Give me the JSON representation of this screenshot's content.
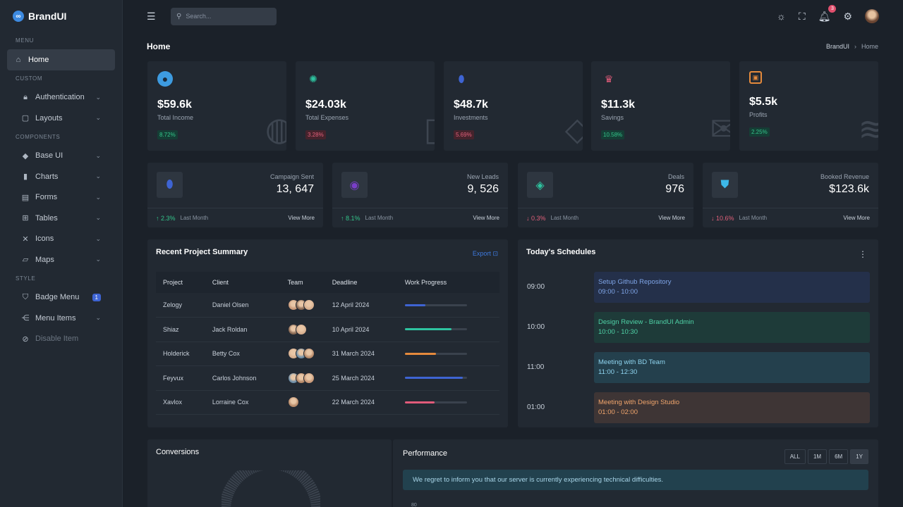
{
  "brand": {
    "name": "BrandUI",
    "logo": "∞"
  },
  "sidebar": {
    "sections": {
      "menu": "MENU",
      "custom": "CUSTOM",
      "components": "COMPONENTS",
      "style": "STYLE"
    },
    "items": [
      {
        "label": "Home",
        "icon": "home-icon"
      },
      {
        "label": "Authentication",
        "icon": "lock-icon"
      },
      {
        "label": "Layouts",
        "icon": "layout-icon"
      },
      {
        "label": "Base UI",
        "icon": "droplet-icon"
      },
      {
        "label": "Charts",
        "icon": "bar-chart-icon"
      },
      {
        "label": "Forms",
        "icon": "clipboard-icon"
      },
      {
        "label": "Tables",
        "icon": "table-icon"
      },
      {
        "label": "Icons",
        "icon": "tools-icon"
      },
      {
        "label": "Maps",
        "icon": "map-icon"
      },
      {
        "label": "Badge Menu",
        "icon": "shield-icon",
        "badge": "1"
      },
      {
        "label": "Menu Items",
        "icon": "share-icon"
      },
      {
        "label": "Disable Item",
        "icon": "disabled-icon"
      }
    ]
  },
  "topbar": {
    "search_placeholder": "Search...",
    "notification_count": "3"
  },
  "page": {
    "title": "Home",
    "breadcrumb": [
      "BrandUI",
      "Home"
    ]
  },
  "stats": [
    {
      "value": "$59.6k",
      "label": "Total Income",
      "pct": "8.72%",
      "trend": "up",
      "color": "#3d9be0",
      "icon": "globe-icon"
    },
    {
      "value": "$24.03k",
      "label": "Total Expenses",
      "pct": "3.28%",
      "trend": "down",
      "color": "#2ec4a0",
      "icon": "spinner-icon"
    },
    {
      "value": "$48.7k",
      "label": "Investments",
      "pct": "5.69%",
      "trend": "down",
      "color": "#3e64d3",
      "icon": "drop-icon"
    },
    {
      "value": "$11.3k",
      "label": "Savings",
      "pct": "10.58%",
      "trend": "up",
      "color": "#e15b7a",
      "icon": "crown-icon"
    },
    {
      "value": "$5.5k",
      "label": "Profits",
      "pct": "2.25%",
      "trend": "up",
      "color": "#e58a3c",
      "icon": "chip-icon"
    }
  ],
  "kpis": [
    {
      "label": "Campaign Sent",
      "value": "13, 647",
      "change": "↑ 2.3%",
      "trend": "up",
      "last": "Last Month",
      "more": "View More",
      "color": "#3e64d3"
    },
    {
      "label": "New Leads",
      "value": "9, 526",
      "change": "↑ 8.1%",
      "trend": "up",
      "last": "Last Month",
      "more": "View More",
      "color": "#7a3ec9"
    },
    {
      "label": "Deals",
      "value": "976",
      "change": "↓ 0.3%",
      "trend": "down",
      "last": "Last Month",
      "more": "View More",
      "color": "#2ec4a0"
    },
    {
      "label": "Booked Revenue",
      "value": "$123.6k",
      "change": "↓ 10.6%",
      "trend": "down",
      "last": "Last Month",
      "more": "View More",
      "color": "#3db8e8"
    }
  ],
  "projects": {
    "title": "Recent Project Summary",
    "export": "Export",
    "headers": [
      "Project",
      "Client",
      "Team",
      "Deadline",
      "Work Progress"
    ],
    "rows": [
      {
        "project": "Zelogy",
        "client": "Daniel Olsen",
        "team": 3,
        "deadline": "12 April 2024",
        "progress": 0.33,
        "color": "#3e64d3"
      },
      {
        "project": "Shiaz",
        "client": "Jack Roldan",
        "team": 2,
        "deadline": "10 April 2024",
        "progress": 0.75,
        "color": "#2ec4a0"
      },
      {
        "project": "Holderick",
        "client": "Betty Cox",
        "team": 3,
        "deadline": "31 March 2024",
        "progress": 0.5,
        "color": "#e58a3c"
      },
      {
        "project": "Feyvux",
        "client": "Carlos Johnson",
        "team": 3,
        "deadline": "25 March 2024",
        "progress": 0.93,
        "color": "#3e64d3"
      },
      {
        "project": "Xavlox",
        "client": "Lorraine Cox",
        "team": 1,
        "deadline": "22 March 2024",
        "progress": 0.48,
        "color": "#e15b7a"
      }
    ]
  },
  "schedules": {
    "title": "Today's Schedules",
    "items": [
      {
        "time": "09:00",
        "event": "Setup Github Repository",
        "range": "09:00 - 10:00",
        "bg": "#24304a",
        "fg": "#7ea4e6"
      },
      {
        "time": "10:00",
        "event": "Design Review - BrandUI Admin",
        "range": "10:00 - 10:30",
        "bg": "#1e3b39",
        "fg": "#4fd1a6"
      },
      {
        "time": "11:00",
        "event": "Meeting with BD Team",
        "range": "11:00 - 12:30",
        "bg": "#24404d",
        "fg": "#8ed3ee"
      },
      {
        "time": "01:00",
        "event": "Meeting with Design Studio",
        "range": "01:00 - 02:00",
        "bg": "#3e3535",
        "fg": "#f0a56c"
      }
    ]
  },
  "conversions": {
    "title": "Conversions"
  },
  "performance": {
    "title": "Performance",
    "tabs": [
      "ALL",
      "1M",
      "6M",
      "1Y"
    ],
    "alert": "We regret to inform you that our server is currently experiencing technical difficulties.",
    "axis_top": "80"
  }
}
